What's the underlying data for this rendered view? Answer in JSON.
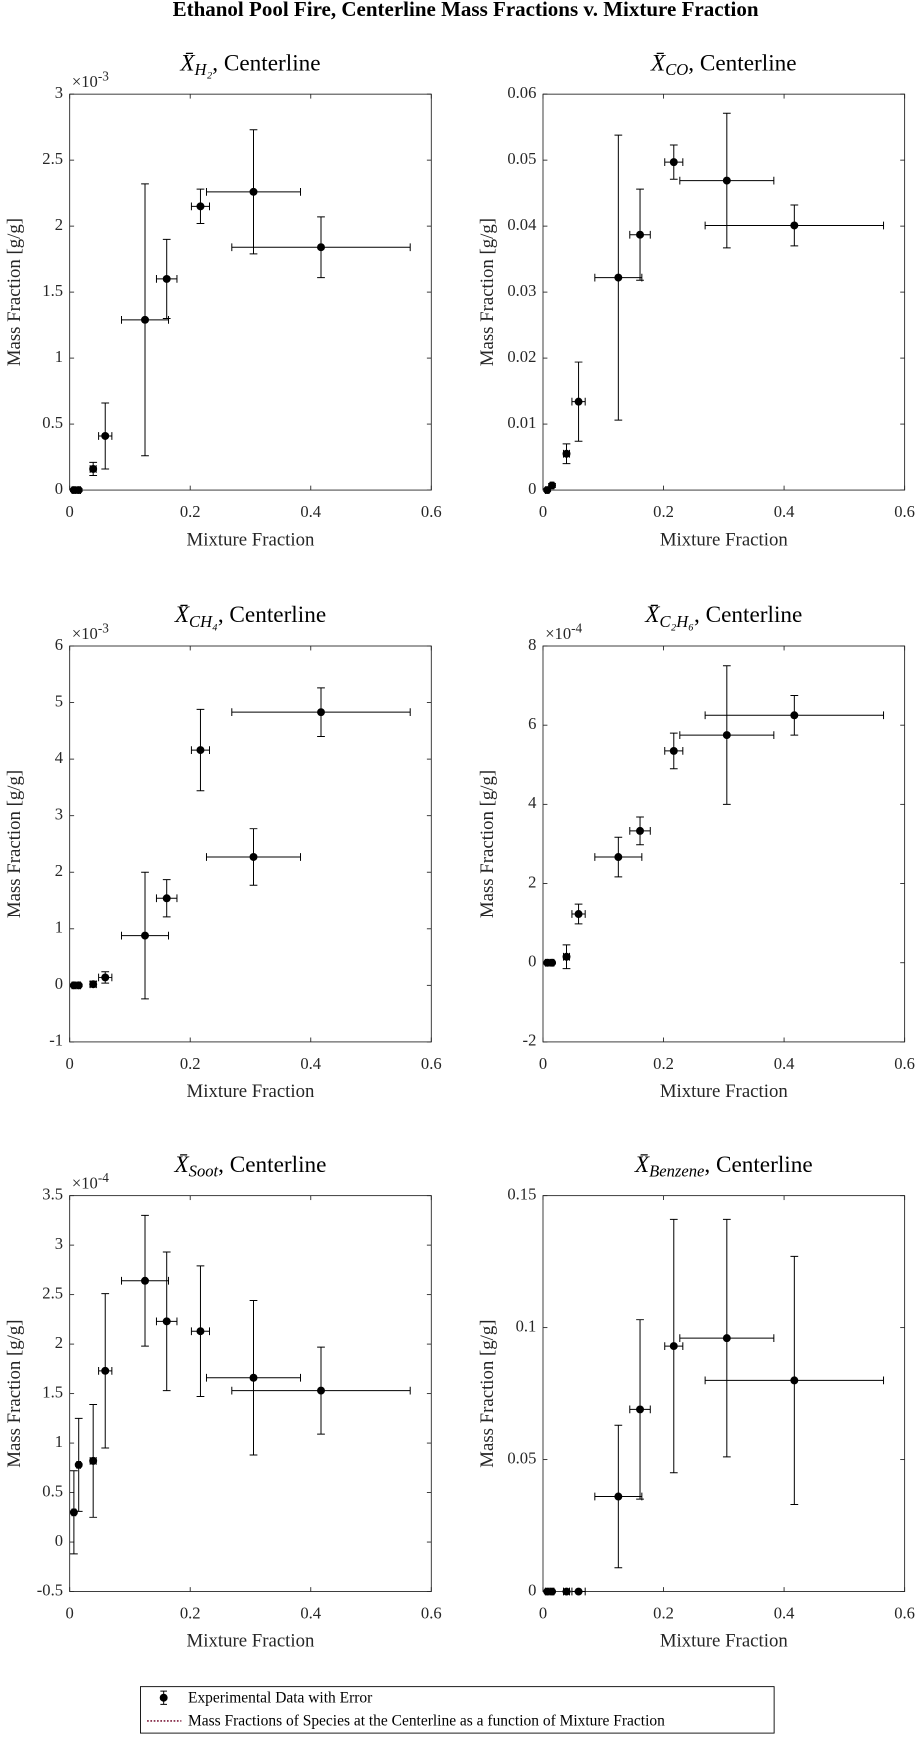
{
  "title": "Ethanol Pool Fire, Centerline Mass Fractions v. Mixture Fraction",
  "legend": {
    "entries": [
      {
        "name": "Experimental Data with Error",
        "color": "#000000"
      },
      {
        "name": "Mass Fractions of Species at the Centerline as a function of Mixture Fraction",
        "color": "#7b1a3a"
      }
    ]
  },
  "chart_data": [
    {
      "type": "errorbar",
      "title_symbol": "X̄",
      "title_sub": "H₂",
      "title_rest": ", Centerline",
      "xlabel": "Mixture Fraction",
      "ylabel": "Mass Fraction [g/g]",
      "y_multiplier": {
        "base": "×10",
        "exponent": "-3"
      },
      "x": [
        0.007,
        0.015,
        0.039,
        0.059,
        0.125,
        0.161,
        0.217,
        0.305,
        0.417
      ],
      "x_err": [
        0.003,
        0.003,
        0.005,
        0.011,
        0.039,
        0.017,
        0.015,
        0.078,
        0.148
      ],
      "values": [
        0,
        0,
        0.16,
        0.41,
        1.29,
        1.6,
        2.15,
        2.26,
        1.84
      ],
      "y_err": [
        0.01,
        0.01,
        0.05,
        0.25,
        1.03,
        0.3,
        0.13,
        0.47,
        0.23
      ],
      "color": "#000000",
      "xlim": [
        0,
        0.6
      ],
      "xticks": [
        0,
        0.2,
        0.4,
        0.6
      ],
      "ylim": [
        0,
        3
      ],
      "yticks": [
        0,
        0.5,
        1,
        1.5,
        2,
        2.5,
        3
      ]
    },
    {
      "type": "errorbar",
      "title_symbol": "X̄",
      "title_sub": "CO",
      "title_rest": ", Centerline",
      "xlabel": "Mixture Fraction",
      "ylabel": "Mass Fraction [g/g]",
      "x": [
        0.007,
        0.015,
        0.039,
        0.059,
        0.125,
        0.161,
        0.217,
        0.305,
        0.417
      ],
      "x_err": [
        0.003,
        0.003,
        0.005,
        0.011,
        0.039,
        0.017,
        0.015,
        0.078,
        0.148
      ],
      "values": [
        0,
        0.0007,
        0.0055,
        0.0134,
        0.0322,
        0.0387,
        0.0497,
        0.0469,
        0.0401
      ],
      "y_err": [
        0.0002,
        0.0003,
        0.0015,
        0.006,
        0.0216,
        0.0069,
        0.0026,
        0.0102,
        0.0031
      ],
      "color": "#000000",
      "xlim": [
        0,
        0.6
      ],
      "xticks": [
        0,
        0.2,
        0.4,
        0.6
      ],
      "ylim": [
        0,
        0.06
      ],
      "yticks": [
        0,
        0.01,
        0.02,
        0.03,
        0.04,
        0.05,
        0.06
      ]
    },
    {
      "type": "errorbar",
      "title_symbol": "X̄",
      "title_sub": "CH₄",
      "title_rest": ", Centerline",
      "xlabel": "Mixture Fraction",
      "ylabel": "Mass Fraction [g/g]",
      "y_multiplier": {
        "base": "×10",
        "exponent": "-3"
      },
      "x": [
        0.007,
        0.015,
        0.039,
        0.059,
        0.125,
        0.161,
        0.217,
        0.305,
        0.417
      ],
      "x_err": [
        0.003,
        0.003,
        0.005,
        0.011,
        0.039,
        0.017,
        0.015,
        0.078,
        0.148
      ],
      "values": [
        0,
        0,
        0.02,
        0.14,
        0.88,
        1.54,
        4.16,
        2.27,
        4.83
      ],
      "y_err": [
        0.02,
        0.02,
        0.05,
        0.1,
        1.12,
        0.33,
        0.72,
        0.5,
        0.43
      ],
      "color": "#000000",
      "xlim": [
        0,
        0.6
      ],
      "xticks": [
        0,
        0.2,
        0.4,
        0.6
      ],
      "ylim": [
        -1,
        6
      ],
      "yticks": [
        -1,
        0,
        1,
        2,
        3,
        4,
        5,
        6
      ]
    },
    {
      "type": "errorbar",
      "title_symbol": "X̄",
      "title_sub": "C₂H₆",
      "title_rest": ", Centerline",
      "xlabel": "Mixture Fraction",
      "ylabel": "Mass Fraction [g/g]",
      "y_multiplier": {
        "base": "×10",
        "exponent": "-4"
      },
      "x": [
        0.007,
        0.015,
        0.039,
        0.059,
        0.125,
        0.161,
        0.217,
        0.305,
        0.417
      ],
      "x_err": [
        0.003,
        0.003,
        0.005,
        0.011,
        0.039,
        0.017,
        0.015,
        0.078,
        0.148
      ],
      "values": [
        0,
        0,
        0.15,
        1.23,
        2.67,
        3.33,
        5.35,
        5.75,
        6.25
      ],
      "y_err": [
        0.02,
        0.02,
        0.3,
        0.25,
        0.5,
        0.35,
        0.45,
        1.75,
        0.5
      ],
      "color": "#000000",
      "xlim": [
        0,
        0.6
      ],
      "xticks": [
        0,
        0.2,
        0.4,
        0.6
      ],
      "ylim": [
        -2,
        8
      ],
      "yticks": [
        -2,
        0,
        2,
        4,
        6,
        8
      ]
    },
    {
      "type": "errorbar",
      "title_symbol": "X̄",
      "title_sub": "Soot",
      "title_rest": ", Centerline",
      "xlabel": "Mixture Fraction",
      "ylabel": "Mass Fraction [g/g]",
      "y_multiplier": {
        "base": "×10",
        "exponent": "-4"
      },
      "x": [
        0.007,
        0.015,
        0.039,
        0.059,
        0.125,
        0.161,
        0.217,
        0.305,
        0.417
      ],
      "x_err": [
        0.003,
        0.003,
        0.005,
        0.011,
        0.039,
        0.017,
        0.015,
        0.078,
        0.148
      ],
      "values": [
        0.3,
        0.78,
        0.82,
        1.73,
        2.64,
        2.23,
        2.13,
        1.66,
        1.53
      ],
      "y_err": [
        0.42,
        0.47,
        0.57,
        0.78,
        0.66,
        0.7,
        0.66,
        0.78,
        0.44
      ],
      "color": "#000000",
      "xlim": [
        0,
        0.6
      ],
      "xticks": [
        0,
        0.2,
        0.4,
        0.6
      ],
      "ylim": [
        -0.5,
        3.5
      ],
      "yticks": [
        -0.5,
        0,
        0.5,
        1,
        1.5,
        2,
        2.5,
        3,
        3.5
      ]
    },
    {
      "type": "errorbar",
      "title_symbol": "X̄",
      "title_sub": "Benzene",
      "title_rest": ", Centerline",
      "xlabel": "Mixture Fraction",
      "ylabel": "Mass Fraction [g/g]",
      "x": [
        0.007,
        0.015,
        0.039,
        0.059,
        0.125,
        0.161,
        0.217,
        0.305,
        0.417
      ],
      "x_err": [
        0.003,
        0.003,
        0.005,
        0.011,
        0.039,
        0.017,
        0.015,
        0.078,
        0.148
      ],
      "values": [
        0,
        0,
        0,
        0,
        0.036,
        0.069,
        0.093,
        0.096,
        0.08
      ],
      "y_err": [
        0.0002,
        0.0002,
        0.0002,
        0.0002,
        0.027,
        0.034,
        0.048,
        0.045,
        0.047
      ],
      "color": "#000000",
      "xlim": [
        0,
        0.6
      ],
      "xticks": [
        0,
        0.2,
        0.4,
        0.6
      ],
      "ylim": [
        0,
        0.15
      ],
      "yticks": [
        0,
        0.05,
        0.1,
        0.15
      ]
    }
  ]
}
